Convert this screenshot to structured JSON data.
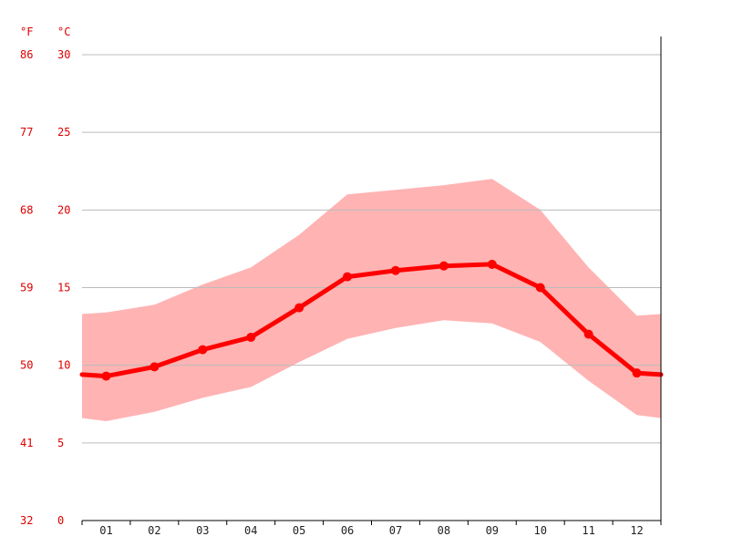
{
  "chart_data": {
    "type": "line",
    "categories": [
      "01",
      "02",
      "03",
      "04",
      "05",
      "06",
      "07",
      "08",
      "09",
      "10",
      "11",
      "12"
    ],
    "series": [
      {
        "kind": "mean",
        "values": [
          9.3,
          9.9,
          11.0,
          11.8,
          13.7,
          15.7,
          16.1,
          16.4,
          16.5,
          15.0,
          12.0,
          9.5
        ]
      },
      {
        "kind": "max",
        "values": [
          13.4,
          13.9,
          15.2,
          16.3,
          18.4,
          21.0,
          21.3,
          21.6,
          22.0,
          20.0,
          16.3,
          13.2
        ]
      },
      {
        "kind": "min",
        "values": [
          6.4,
          7.0,
          7.9,
          8.6,
          10.2,
          11.7,
          12.4,
          12.9,
          12.7,
          11.5,
          9.0,
          6.8
        ]
      }
    ],
    "edge_values": {
      "mean": {
        "start": 9.4,
        "end": 9.4
      },
      "max": {
        "start": 13.3,
        "end": 13.3
      },
      "min": {
        "start": 6.6,
        "end": 6.6
      }
    },
    "y_unit_left": "°F",
    "y_unit_right": "°C",
    "yticks_c": [
      "0",
      "5",
      "10",
      "15",
      "20",
      "25",
      "30"
    ],
    "yticks_f": [
      "32",
      "41",
      "50",
      "59",
      "68",
      "77",
      "86"
    ],
    "ylim": [
      0,
      30
    ],
    "grid": true,
    "colors": {
      "line": "#ff0000",
      "band": "#ffb3b3",
      "tick_text": "#dd0000",
      "grid": "#bbbbbb",
      "axis": "#000000"
    }
  }
}
